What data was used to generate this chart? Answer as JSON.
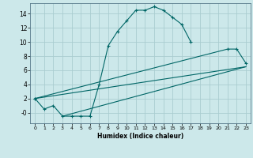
{
  "xlabel": "Humidex (Indice chaleur)",
  "background_color": "#cce8ea",
  "grid_color": "#aacdd0",
  "line_color": "#006666",
  "xlim": [
    -0.5,
    23.5
  ],
  "ylim": [
    -1.5,
    15.5
  ],
  "xticks": [
    0,
    1,
    2,
    3,
    4,
    5,
    6,
    7,
    8,
    9,
    10,
    11,
    12,
    13,
    14,
    15,
    16,
    17,
    18,
    19,
    20,
    21,
    22,
    23
  ],
  "yticks": [
    0,
    2,
    4,
    6,
    8,
    10,
    12,
    14
  ],
  "ytick_labels": [
    "-0",
    "2",
    "4",
    "6",
    "8",
    "10",
    "12",
    "14"
  ],
  "series1_x": [
    0,
    1,
    2,
    3,
    4,
    5,
    6,
    7,
    8,
    9,
    10,
    11,
    12,
    13,
    14,
    15,
    16,
    17
  ],
  "series1_y": [
    2.0,
    0.5,
    1.0,
    -0.5,
    -0.5,
    -0.5,
    -0.5,
    4.0,
    9.5,
    11.5,
    13.0,
    14.5,
    14.5,
    15.0,
    14.5,
    13.5,
    12.5,
    10.0
  ],
  "series2_x": [
    0,
    21,
    22,
    23
  ],
  "series2_y": [
    2.0,
    9.0,
    9.0,
    7.0
  ],
  "series3_x": [
    0,
    23
  ],
  "series3_y": [
    2.0,
    6.5
  ],
  "series4_x": [
    3,
    23
  ],
  "series4_y": [
    -0.5,
    6.5
  ]
}
